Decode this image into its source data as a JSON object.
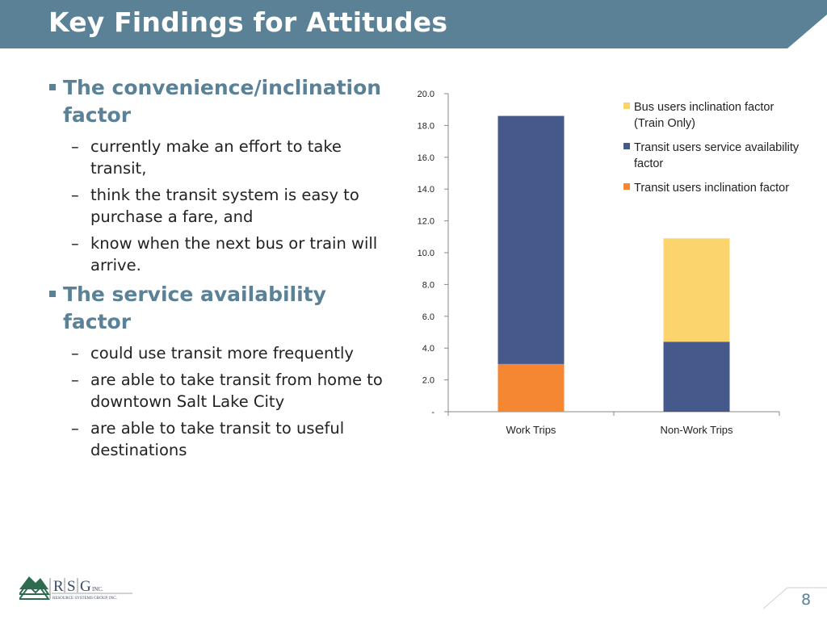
{
  "slide": {
    "title": "Key Findings for Attitudes",
    "page_number": "8",
    "colors": {
      "header": "#5b8196",
      "accent": "#5b8196"
    }
  },
  "content": {
    "sections": [
      {
        "heading": "The convenience/inclination factor",
        "items": [
          "currently make an effort to take transit,",
          "think the transit system is easy to purchase a fare, and",
          "know when the next bus or train will arrive."
        ]
      },
      {
        "heading": "The service availability factor",
        "items": [
          "could use transit more frequently",
          "are able to take transit from home to downtown Salt Lake City",
          "are able to take transit to useful destinations"
        ]
      }
    ]
  },
  "logo": {
    "letters": [
      "R",
      "S",
      "G"
    ],
    "suffix": "INC.",
    "tagline": "RESOURCE SYSTEMS GROUP, INC."
  },
  "chart_data": {
    "type": "bar",
    "stacked": true,
    "categories": [
      "Work Trips",
      "Non-Work Trips"
    ],
    "series": [
      {
        "name": "Transit users inclination factor",
        "values": [
          3.0,
          0
        ],
        "color": "#f58632"
      },
      {
        "name": "Transit users service availability factor",
        "values": [
          15.6,
          4.4
        ],
        "color": "#45598b"
      },
      {
        "name": "Bus users inclination factor (Train Only)",
        "values": [
          0,
          6.5
        ],
        "color": "#fcd46e"
      }
    ],
    "legend": [
      {
        "lines": [
          "Bus users inclination factor",
          "(Train Only)"
        ],
        "color": "#fcd46e"
      },
      {
        "lines": [
          "Transit users service availability",
          "factor"
        ],
        "color": "#45598b"
      },
      {
        "lines": [
          "Transit users inclination factor"
        ],
        "color": "#f58632"
      }
    ],
    "ylim": [
      0,
      20
    ],
    "yticks": [
      "-",
      "2.0",
      "4.0",
      "6.0",
      "8.0",
      "10.0",
      "12.0",
      "14.0",
      "16.0",
      "18.0",
      "20.0"
    ],
    "legend_position": "top-right",
    "grid": false
  }
}
